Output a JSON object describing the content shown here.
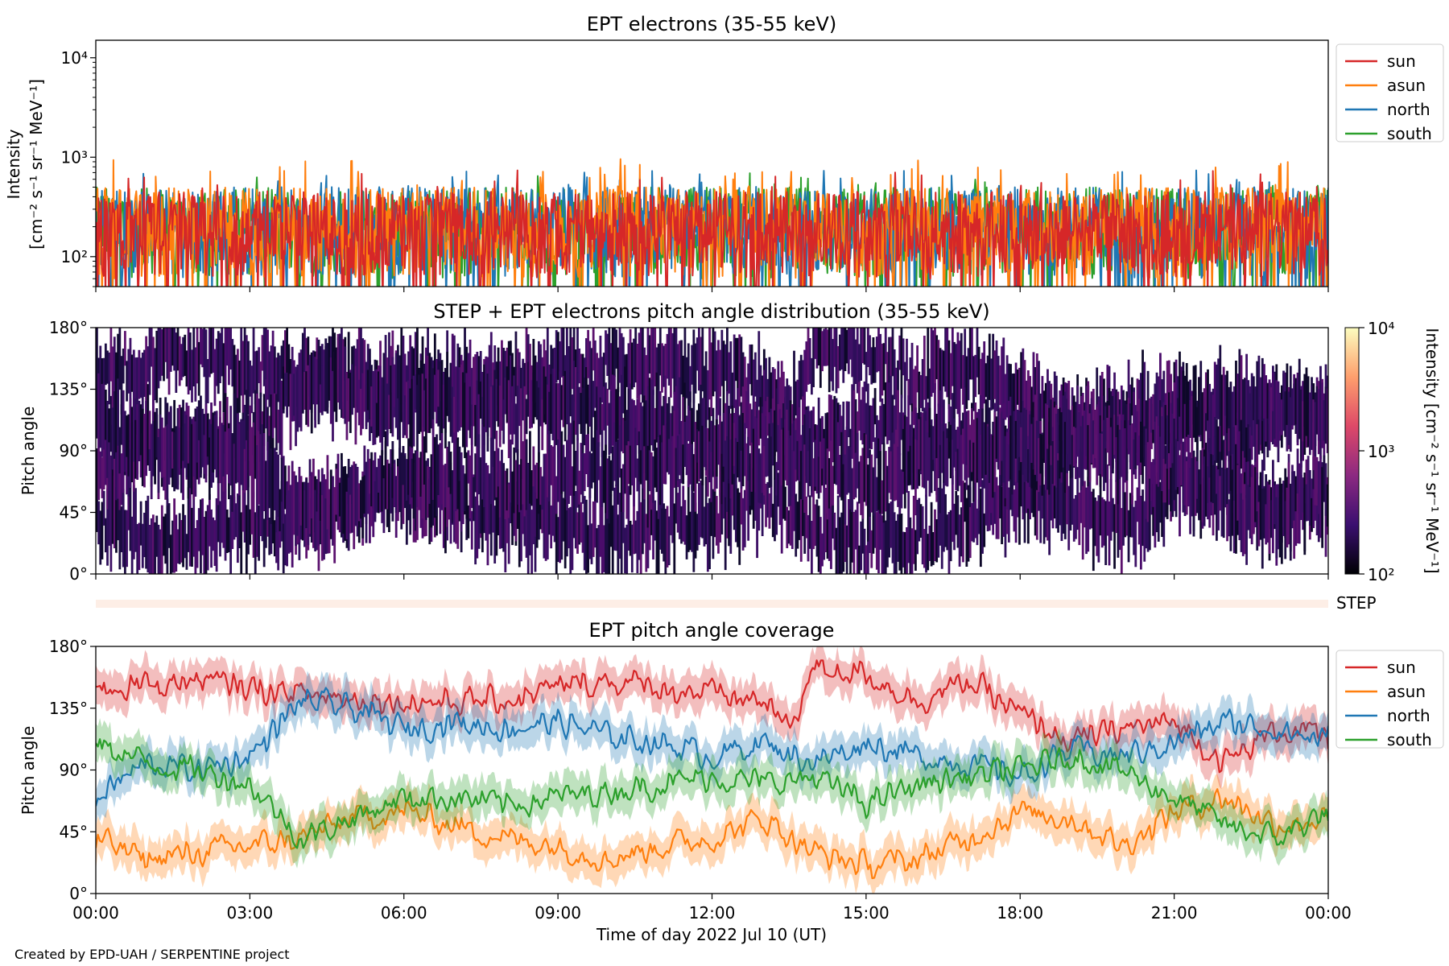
{
  "chart_data": [
    {
      "type": "line",
      "title": "EPT electrons (35-55 keV)",
      "ylabel_lines": [
        "Intensity",
        "[cm⁻² s⁻¹ sr⁻¹ MeV⁻¹]"
      ],
      "yscale": "log",
      "ylim": [
        50,
        15000
      ],
      "yticks": [
        "10²",
        "10³",
        "10⁴"
      ],
      "xlim": [
        "2022-07-10T00:00",
        "2022-07-11T00:00"
      ],
      "legend_position": "outside-right-top",
      "series": [
        {
          "name": "sun",
          "color": "#d62728",
          "typical_range": [
            60,
            450
          ],
          "peak": 750
        },
        {
          "name": "asun",
          "color": "#ff7f0e",
          "typical_range": [
            60,
            500
          ],
          "peak": 1000
        },
        {
          "name": "north",
          "color": "#1f77b4",
          "typical_range": [
            60,
            500
          ],
          "peak": 750
        },
        {
          "name": "south",
          "color": "#2ca02c",
          "typical_range": [
            60,
            500
          ],
          "peak": 700
        }
      ]
    },
    {
      "type": "heatmap",
      "title": "STEP + EPT electrons pitch angle distribution (35-55 keV)",
      "ylabel": "Pitch angle",
      "ylim": [
        0,
        180
      ],
      "yticks": [
        "0°",
        "45°",
        "90°",
        "135°",
        "180°"
      ],
      "colorbar": {
        "label": "Intensity [cm⁻² s⁻¹ sr⁻¹ MeV⁻¹]",
        "scale": "log",
        "range": [
          100,
          10000
        ],
        "ticks": [
          "10²",
          "10³",
          "10⁴"
        ],
        "colormap": "inferno",
        "colors": [
          "#000004",
          "#3b0f70",
          "#8c2981",
          "#de4968",
          "#fe9f6d",
          "#fcfdbf"
        ]
      },
      "extra_row_label": "STEP"
    },
    {
      "type": "line",
      "title": "EPT pitch angle coverage",
      "ylabel": "Pitch angle",
      "ylim": [
        0,
        180
      ],
      "yticks": [
        "0°",
        "45°",
        "90°",
        "135°",
        "180°"
      ],
      "xlabel": "Time of day 2022 Jul 10 (UT)",
      "xticks": [
        "00:00",
        "03:00",
        "06:00",
        "09:00",
        "12:00",
        "15:00",
        "18:00",
        "21:00",
        "00:00"
      ],
      "legend_position": "outside-right-top",
      "series": [
        {
          "name": "sun",
          "color": "#d62728",
          "hours": [
            0,
            2,
            4,
            6,
            8,
            9,
            10,
            12,
            13,
            13.5,
            14,
            15,
            16,
            17,
            18,
            19,
            20,
            21,
            22,
            23,
            24
          ],
          "values": [
            150,
            155,
            145,
            140,
            140,
            150,
            155,
            145,
            140,
            120,
            165,
            160,
            140,
            155,
            130,
            110,
            120,
            125,
            95,
            120,
            115
          ]
        },
        {
          "name": "asun",
          "color": "#ff7f0e",
          "hours": [
            0,
            1,
            2,
            3,
            4,
            5,
            6,
            7,
            8,
            9,
            10,
            11,
            12,
            13,
            14,
            15,
            16,
            17,
            18,
            19,
            20,
            21,
            22,
            23,
            24
          ],
          "values": [
            40,
            25,
            30,
            35,
            40,
            55,
            60,
            50,
            40,
            35,
            25,
            35,
            40,
            55,
            30,
            20,
            25,
            40,
            60,
            55,
            35,
            60,
            70,
            50,
            55
          ]
        },
        {
          "name": "north",
          "color": "#1f77b4",
          "hours": [
            0,
            1,
            2,
            3,
            4,
            5,
            6,
            7,
            8,
            9,
            10,
            11,
            12,
            13,
            14,
            15,
            16,
            17,
            18,
            19,
            20,
            21,
            22,
            23,
            24
          ],
          "values": [
            70,
            95,
            90,
            100,
            140,
            135,
            120,
            125,
            120,
            125,
            115,
            110,
            100,
            110,
            95,
            110,
            100,
            95,
            85,
            105,
            100,
            110,
            125,
            120,
            110
          ]
        },
        {
          "name": "south",
          "color": "#2ca02c",
          "hours": [
            0,
            1,
            2,
            3,
            4,
            5,
            6,
            7,
            8,
            9,
            10,
            11,
            12,
            13,
            14,
            15,
            16,
            17,
            18,
            19,
            20,
            21,
            22,
            23,
            24
          ],
          "values": [
            110,
            95,
            90,
            80,
            40,
            55,
            70,
            70,
            65,
            70,
            75,
            80,
            85,
            80,
            85,
            65,
            80,
            85,
            90,
            100,
            90,
            70,
            50,
            40,
            60
          ]
        }
      ]
    }
  ],
  "credit": "Created by EPD-UAH / SERPENTINE project"
}
